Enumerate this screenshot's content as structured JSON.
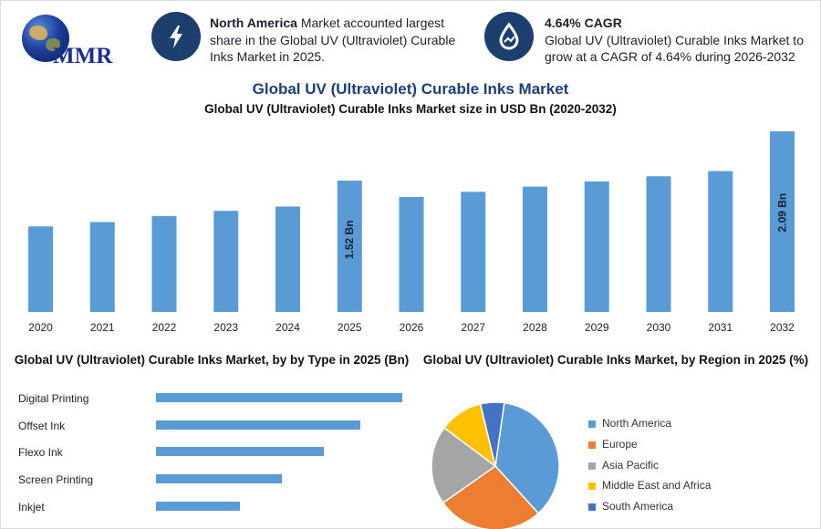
{
  "logo": {
    "text": "MMR"
  },
  "info_cards": [
    {
      "icon": "lightning-icon",
      "bold": "North America",
      "text": " Market accounted largest share in the Global UV (Ultraviolet) Curable Inks Market in 2025."
    },
    {
      "icon": "growth-drop-icon",
      "bold": "4.64% CAGR",
      "text": "Global UV (Ultraviolet) Curable Inks Market to grow at a CAGR of 4.64% during 2026-2032"
    }
  ],
  "colors": {
    "bar": "#5b9bd5",
    "badge": "#1c3f6f",
    "title": "#1d3f7a"
  },
  "chart_data": [
    {
      "type": "bar",
      "title": "Global UV (Ultraviolet) Curable Inks Market",
      "subtitle": "Global UV (Ultraviolet) Curable Inks Market size in USD Bn (2020-2032)",
      "categories": [
        "2020",
        "2021",
        "2022",
        "2023",
        "2024",
        "2025",
        "2026",
        "2027",
        "2028",
        "2029",
        "2030",
        "2031",
        "2032"
      ],
      "values": [
        0.99,
        1.04,
        1.11,
        1.17,
        1.22,
        1.52,
        1.33,
        1.39,
        1.45,
        1.51,
        1.57,
        1.63,
        2.09
      ],
      "data_labels": {
        "2025": "1.52 Bn",
        "2032": "2.09 Bn"
      },
      "ylim": [
        0,
        2.09
      ],
      "axes_visible": false,
      "grid": false
    },
    {
      "type": "bar",
      "orientation": "horizontal",
      "title": "Global UV (Ultraviolet) Curable Inks Market, by by Type in 2025 (Bn)",
      "categories": [
        "Digital Printing",
        "Offset Ink",
        "Flexo Ink",
        "Screen Printing",
        "Inkjet"
      ],
      "values": [
        0.47,
        0.39,
        0.32,
        0.24,
        0.16
      ]
    },
    {
      "type": "pie",
      "title": "Global UV (Ultraviolet) Curable Inks Market, by Region in 2025 (%)",
      "labels": [
        "North America",
        "Europe",
        "Asia Pacific",
        "Middle East and Africa",
        "South America"
      ],
      "values": [
        36,
        27,
        20,
        11,
        6
      ],
      "colors": [
        "#5b9bd5",
        "#ed7d31",
        "#a5a5a5",
        "#ffc000",
        "#4472c4"
      ],
      "legend_position": "right"
    }
  ]
}
